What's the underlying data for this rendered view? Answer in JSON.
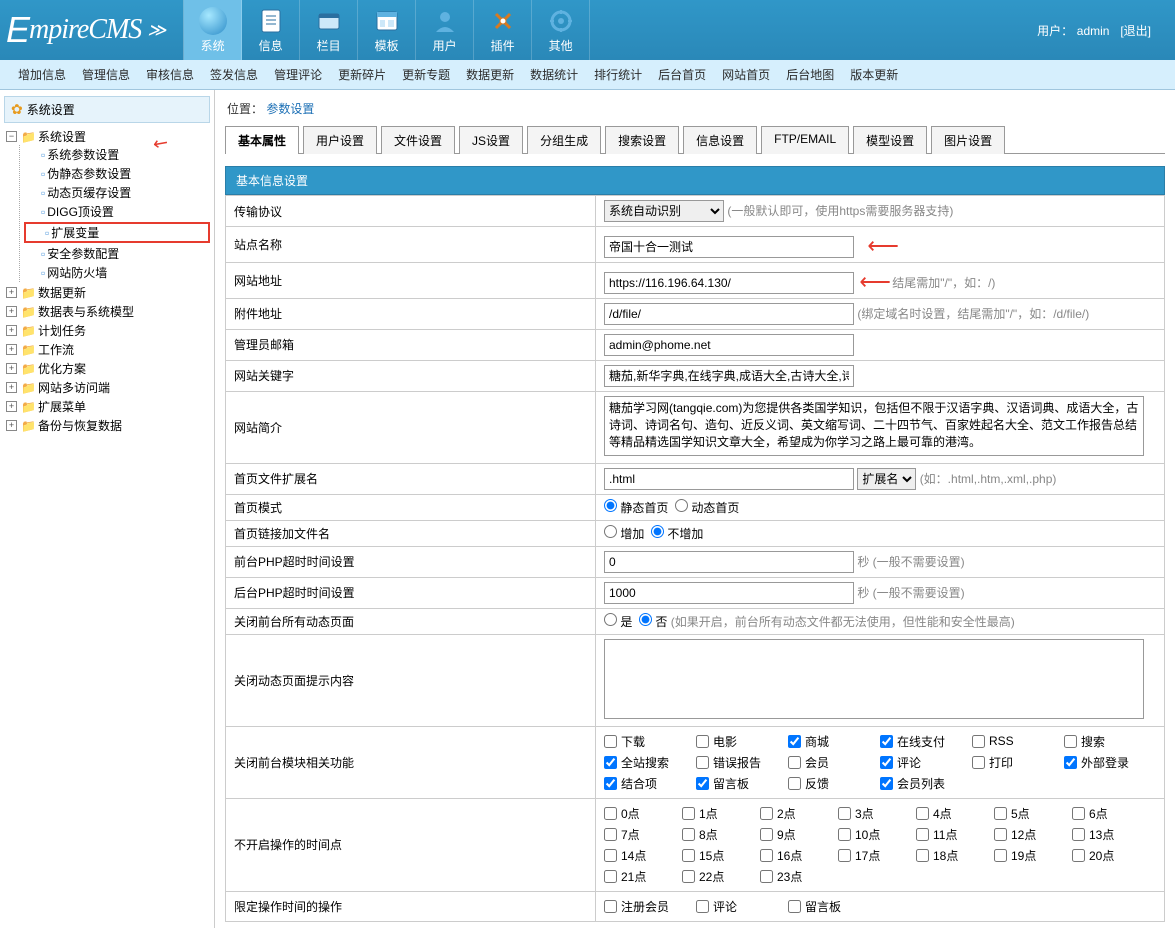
{
  "header": {
    "logo": "EmpireCMS",
    "userPrefix": "用户：",
    "username": "admin",
    "logout": "[退出]",
    "nav": [
      {
        "key": "system",
        "label": "系统",
        "active": true
      },
      {
        "key": "info",
        "label": "信息"
      },
      {
        "key": "column",
        "label": "栏目"
      },
      {
        "key": "template",
        "label": "模板"
      },
      {
        "key": "user",
        "label": "用户"
      },
      {
        "key": "plugin",
        "label": "插件"
      },
      {
        "key": "other",
        "label": "其他"
      }
    ]
  },
  "secmenu": [
    "增加信息",
    "管理信息",
    "审核信息",
    "签发信息",
    "管理评论",
    "更新碎片",
    "更新专题",
    "数据更新",
    "数据统计",
    "排行统计",
    "后台首页",
    "网站首页",
    "后台地图",
    "版本更新"
  ],
  "sidebar": {
    "title": "系统设置",
    "roots": [
      {
        "label": "系统设置",
        "expanded": true,
        "children": [
          {
            "label": "系统参数设置"
          },
          {
            "label": "伪静态参数设置"
          },
          {
            "label": "动态页缓存设置"
          },
          {
            "label": "DIGG顶设置"
          },
          {
            "label": "扩展变量",
            "hl": true
          },
          {
            "label": "安全参数配置"
          },
          {
            "label": "网站防火墙"
          }
        ]
      },
      {
        "label": "数据更新"
      },
      {
        "label": "数据表与系统模型"
      },
      {
        "label": "计划任务"
      },
      {
        "label": "工作流"
      },
      {
        "label": "优化方案"
      },
      {
        "label": "网站多访问端"
      },
      {
        "label": "扩展菜单"
      },
      {
        "label": "备份与恢复数据"
      }
    ]
  },
  "breadcrumb": {
    "prefix": "位置：",
    "link": "参数设置"
  },
  "tabs": [
    "基本属性",
    "用户设置",
    "文件设置",
    "JS设置",
    "分组生成",
    "搜索设置",
    "信息设置",
    "FTP/EMAIL",
    "模型设置",
    "图片设置"
  ],
  "activeTab": 0,
  "section": "基本信息设置",
  "form": {
    "protocolLabel": "传输协议",
    "protocolValue": "系统自动识别",
    "protocolHint": "(一般默认即可，使用https需要服务器支持)",
    "sitenameLabel": "站点名称",
    "sitenameValue": "帝国十合一测试",
    "siteurlLabel": "网站地址",
    "siteurlValue": "https://116.196.64.130/",
    "siteurlHint": "结尾需加\"/\"，如：/)",
    "fileurlLabel": "附件地址",
    "fileurlValue": "/d/file/",
    "fileurlHint": "(绑定域名时设置，结尾需加\"/\"，如：/d/file/)",
    "emailLabel": "管理员邮箱",
    "emailValue": "admin@phome.net",
    "keywordsLabel": "网站关键字",
    "keywordsValue": "糖茄,新华字典,在线字典,成语大全,古诗大全,诗词",
    "introLabel": "网站简介",
    "introValue": "糖茄学习网(tangqie.com)为您提供各类国学知识，包括但不限于汉语字典、汉语词典、成语大全，古诗词、诗词名句、造句、近反义词、英文缩写词、二十四节气、百家姓起名大全、范文工作报告总结等精品精选国学知识文章大全，希望成为你学习之路上最可靠的港湾。",
    "extLabel": "首页文件扩展名",
    "extValue": ".html",
    "extBtn": "扩展名",
    "extHint": "(如：.html,.htm,.xml,.php)",
    "modeLabel": "首页模式",
    "modeStatic": "静态首页",
    "modeDynamic": "动态首页",
    "linkfileLabel": "首页链接加文件名",
    "linkfileAdd": "增加",
    "linkfileNo": "不增加",
    "frontPhpLabel": "前台PHP超时时间设置",
    "frontPhpValue": "0",
    "frontPhpHint": "秒 (一般不需要设置)",
    "backPhpLabel": "后台PHP超时时间设置",
    "backPhpValue": "1000",
    "backPhpHint": "秒 (一般不需要设置)",
    "closeDynLabel": "关闭前台所有动态页面",
    "closeDynYes": "是",
    "closeDynNo": "否",
    "closeDynHint": "(如果开启，前台所有动态文件都无法使用，但性能和安全性最高)",
    "closeTipLabel": "关闭动态页面提示内容",
    "closeModLabel": "关闭前台模块相关功能",
    "mods": [
      {
        "label": "下载",
        "c": false
      },
      {
        "label": "电影",
        "c": false
      },
      {
        "label": "商城",
        "c": true
      },
      {
        "label": "在线支付",
        "c": true
      },
      {
        "label": "RSS",
        "c": false
      },
      {
        "label": "搜索",
        "c": false
      },
      {
        "label": "全站搜索",
        "c": true
      },
      {
        "label": "错误报告",
        "c": false
      },
      {
        "label": "会员",
        "c": false
      },
      {
        "label": "评论",
        "c": true
      },
      {
        "label": "打印",
        "c": false
      },
      {
        "label": "外部登录",
        "c": true
      },
      {
        "label": "结合项",
        "c": true
      },
      {
        "label": "留言板",
        "c": true
      },
      {
        "label": "反馈",
        "c": false
      },
      {
        "label": "会员列表",
        "c": true
      }
    ],
    "timeLabel": "不开启操作的时间点",
    "hours": [
      "0点",
      "1点",
      "2点",
      "3点",
      "4点",
      "5点",
      "6点",
      "7点",
      "8点",
      "9点",
      "10点",
      "11点",
      "12点",
      "13点",
      "14点",
      "15点",
      "16点",
      "17点",
      "18点",
      "19点",
      "20点",
      "21点",
      "22点",
      "23点"
    ],
    "limitOpLabel": "限定操作时间的操作",
    "limitOps": [
      "注册会员",
      "评论",
      "留言板"
    ]
  },
  "colors": {
    "headerBg": "#3097c8",
    "activeNav": "#6fc0e8",
    "red": "#e63b2e"
  }
}
